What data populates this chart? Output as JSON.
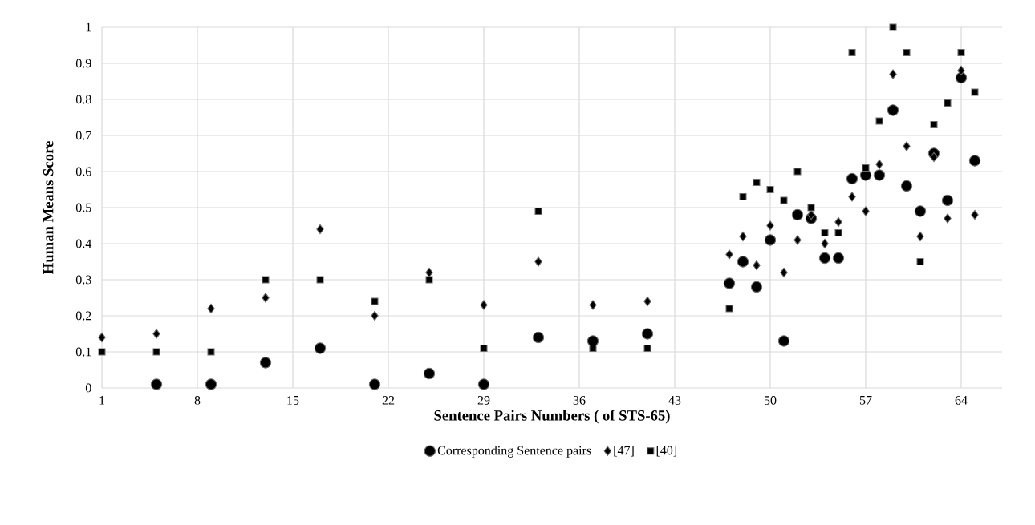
{
  "chart_data": {
    "type": "scatter",
    "xlabel": "Sentence Pairs  Numbers ( of STS-65)",
    "ylabel": "Human Means Score",
    "x": [
      1,
      5,
      9,
      13,
      17,
      21,
      25,
      29,
      33,
      37,
      41,
      47,
      48,
      49,
      50,
      51,
      52,
      53,
      54,
      55,
      56,
      57,
      58,
      59,
      60,
      61,
      62,
      63,
      64,
      65
    ],
    "series": [
      {
        "name": "Corresponding Sentence pairs",
        "color": "#000000",
        "marker": "circle",
        "values": [
          null,
          0.01,
          0.01,
          0.07,
          0.11,
          0.01,
          0.04,
          0.01,
          0.14,
          0.13,
          0.15,
          0.29,
          0.35,
          0.28,
          0.41,
          0.13,
          0.48,
          0.47,
          0.36,
          0.36,
          0.58,
          0.59,
          0.59,
          0.77,
          0.56,
          0.49,
          0.65,
          0.52,
          0.86,
          0.63
        ]
      },
      {
        "name": "[47]",
        "color": "#000000",
        "marker": "diamond",
        "values": [
          0.14,
          0.15,
          0.22,
          0.25,
          0.44,
          0.2,
          0.32,
          0.23,
          0.35,
          0.23,
          0.24,
          0.37,
          0.42,
          0.34,
          0.45,
          0.32,
          0.41,
          0.48,
          0.4,
          0.46,
          0.53,
          0.49,
          0.62,
          0.87,
          0.67,
          0.42,
          0.64,
          0.47,
          0.88,
          0.48
        ]
      },
      {
        "name": "[40]",
        "color": "#000000",
        "marker": "square",
        "values": [
          0.1,
          0.1,
          0.1,
          0.3,
          0.3,
          0.24,
          0.3,
          0.11,
          0.49,
          0.11,
          0.11,
          0.22,
          0.53,
          0.57,
          0.55,
          0.52,
          0.6,
          0.5,
          0.43,
          0.43,
          0.93,
          0.61,
          0.74,
          1.0,
          0.93,
          0.35,
          0.73,
          0.79,
          0.93,
          0.82
        ]
      }
    ],
    "xlim": [
      1,
      67
    ],
    "xticks": [
      1,
      8,
      15,
      22,
      29,
      36,
      43,
      50,
      57,
      64
    ],
    "ylim": [
      0,
      1
    ],
    "yticks": [
      0,
      0.1,
      0.2,
      0.3,
      0.4,
      0.5,
      0.6,
      0.7,
      0.8,
      0.9,
      1
    ],
    "grid": true,
    "legend": "bottom"
  }
}
